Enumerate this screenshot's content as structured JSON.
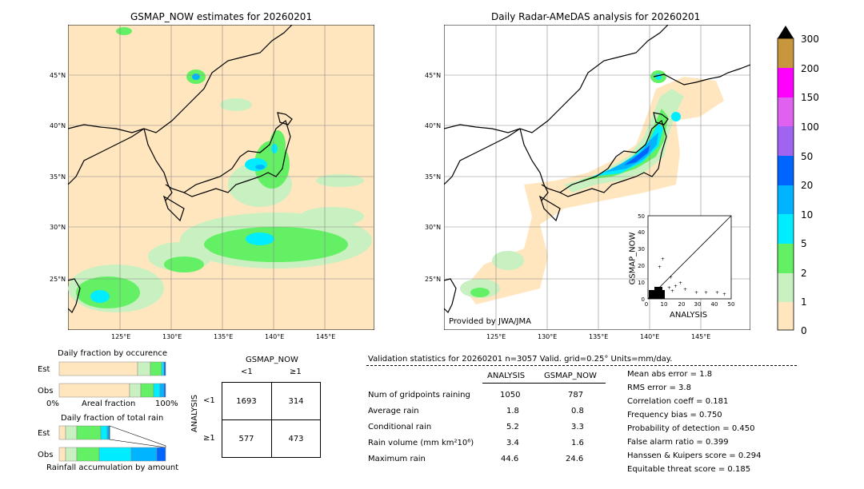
{
  "left_map": {
    "title": "GSMAP_NOW estimates for 20260201",
    "lat_labels": [
      "45°N",
      "40°N",
      "35°N",
      "30°N",
      "25°N"
    ],
    "lon_labels": [
      "125°E",
      "130°E",
      "135°E",
      "140°E",
      "145°E"
    ]
  },
  "right_map": {
    "title": "Daily Radar-AMeDAS analysis for 20260201",
    "lat_labels": [
      "45°N",
      "40°N",
      "35°N",
      "30°N",
      "25°N"
    ],
    "lon_labels": [
      "125°E",
      "130°E",
      "135°E",
      "140°E",
      "145°E"
    ],
    "credit": "Provided by JWA/JMA"
  },
  "colorbar": {
    "ticks": [
      "300",
      "200",
      "150",
      "100",
      "50",
      "20",
      "10",
      "5",
      "2",
      "1",
      "0"
    ],
    "colors": [
      "#c8963c",
      "#ff00ff",
      "#e060f0",
      "#a064f0",
      "#0064ff",
      "#00b4ff",
      "#00ecff",
      "#64f064",
      "#c8f0c0",
      "#ffe6be"
    ]
  },
  "scatter": {
    "xlabel": "ANALYSIS",
    "ylabel": "GSMAP_NOW",
    "ticks": [
      "0",
      "10",
      "20",
      "30",
      "40",
      "50"
    ]
  },
  "occurrence": {
    "title": "Daily fraction by occurence",
    "rows": [
      "Est",
      "Obs"
    ],
    "axis_left": "0%",
    "axis_mid": "Areal fraction",
    "axis_right": "100%"
  },
  "total_rain": {
    "title": "Daily fraction of total rain",
    "rows": [
      "Est",
      "Obs"
    ],
    "footer": "Rainfall accumulation by amount"
  },
  "contingency": {
    "col_header": "GSMAP_NOW",
    "col_lt": "<1",
    "col_ge": "≥1",
    "row_header": "ANALYSIS",
    "row_lt": "<1",
    "row_ge": "≥1",
    "cells": [
      "1693",
      "314",
      "577",
      "473"
    ]
  },
  "validation": {
    "header": "Validation statistics for 20260201  n=3057 Valid. grid=0.25° Units=mm/day.",
    "col_analysis": "ANALYSIS",
    "col_gsmap": "GSMAP_NOW",
    "rows": [
      {
        "label": "Num of gridpoints raining",
        "analysis": "1050",
        "gsmap": "787"
      },
      {
        "label": "Average rain",
        "analysis": "1.8",
        "gsmap": "0.8"
      },
      {
        "label": "Conditional rain",
        "analysis": "5.2",
        "gsmap": "3.3"
      },
      {
        "label": "Rain volume (mm km²10⁶)",
        "analysis": "3.4",
        "gsmap": "1.6"
      },
      {
        "label": "Maximum rain",
        "analysis": "44.6",
        "gsmap": "24.6"
      }
    ],
    "scores": [
      "Mean abs error =    1.8",
      "RMS error =    3.8",
      "Correlation coeff =  0.181",
      "Frequency bias =  0.750",
      "Probability of detection =  0.450",
      "False alarm ratio =  0.399",
      "Hanssen & Kuipers score =  0.294",
      "Equitable threat score =  0.185"
    ]
  }
}
